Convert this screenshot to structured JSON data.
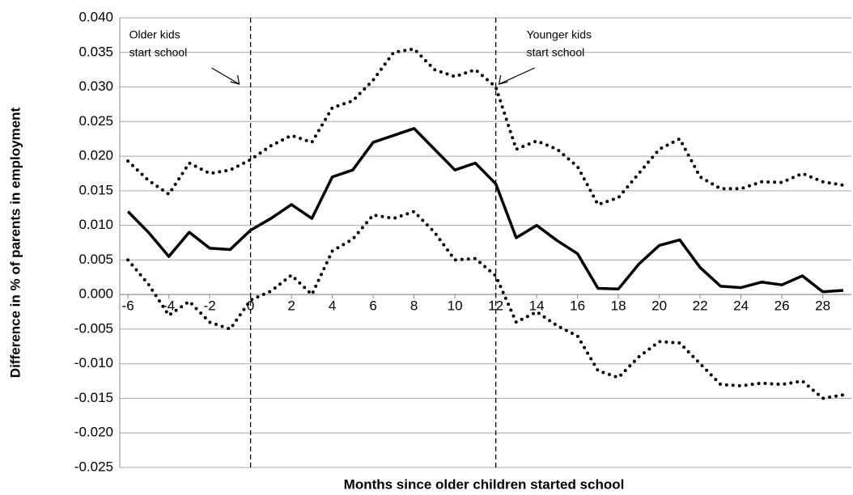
{
  "chart_data": {
    "type": "line",
    "xlabel": "Months since older children started school",
    "ylabel": "Difference in % of parents in employment",
    "x": [
      -6,
      -5,
      -4,
      -3,
      -2,
      -1,
      0,
      1,
      2,
      3,
      4,
      5,
      6,
      7,
      8,
      9,
      10,
      11,
      12,
      13,
      14,
      15,
      16,
      17,
      18,
      19,
      20,
      21,
      22,
      23,
      24,
      25,
      26,
      27,
      28,
      29
    ],
    "series": [
      {
        "color": "#000000",
        "style": "solid",
        "values": [
          0.012,
          0.009,
          0.0055,
          0.009,
          0.0067,
          0.0065,
          0.0093,
          0.011,
          0.013,
          0.011,
          0.017,
          0.018,
          0.022,
          0.023,
          0.024,
          0.021,
          0.018,
          0.019,
          0.016,
          0.0082,
          0.01,
          0.0078,
          0.0059,
          0.0009,
          0.0008,
          0.0044,
          0.0071,
          0.0079,
          0.0039,
          0.0012,
          0.001,
          0.0018,
          0.0014,
          0.0027,
          0.0004,
          0.0006
        ]
      },
      {
        "color": "#000000",
        "style": "dotted",
        "values": [
          0.0193,
          0.0165,
          0.0145,
          0.019,
          0.0175,
          0.018,
          0.0195,
          0.0215,
          0.023,
          0.022,
          0.027,
          0.028,
          0.031,
          0.035,
          0.0355,
          0.0325,
          0.0315,
          0.0325,
          0.03,
          0.021,
          0.0222,
          0.021,
          0.0185,
          0.013,
          0.014,
          0.0175,
          0.021,
          0.0225,
          0.017,
          0.0153,
          0.0153,
          0.0163,
          0.0162,
          0.0175,
          0.0163,
          0.0158
        ]
      },
      {
        "color": "#000000",
        "style": "dotted",
        "values": [
          0.005,
          0.0015,
          -0.003,
          -0.001,
          -0.004,
          -0.005,
          -0.0008,
          0.0005,
          0.0028,
          0.0,
          0.0063,
          0.008,
          0.0115,
          0.011,
          0.012,
          0.009,
          0.005,
          0.0052,
          0.0027,
          -0.004,
          -0.0025,
          -0.0045,
          -0.006,
          -0.011,
          -0.012,
          -0.009,
          -0.0068,
          -0.007,
          -0.01,
          -0.013,
          -0.0132,
          -0.0128,
          -0.013,
          -0.0125,
          -0.015,
          -0.0145
        ]
      }
    ],
    "xlim": [
      -6.4,
      29.4
    ],
    "xticks": [
      -6,
      -4,
      -2,
      0,
      2,
      4,
      6,
      8,
      10,
      12,
      14,
      16,
      18,
      20,
      22,
      24,
      26,
      28
    ],
    "ylim": [
      -0.025,
      0.04
    ],
    "yticks": [
      {
        "value": -0.025,
        "label": "-0.025"
      },
      {
        "value": -0.02,
        "label": "-0.020"
      },
      {
        "value": -0.015,
        "label": "-0.015"
      },
      {
        "value": -0.01,
        "label": "-0.010"
      },
      {
        "value": -0.005,
        "label": "-0.005"
      },
      {
        "value": 0,
        "label": "0.000"
      },
      {
        "value": 0.005,
        "label": "0.005"
      },
      {
        "value": 0.01,
        "label": "0.010"
      },
      {
        "value": 0.015,
        "label": "0.015"
      },
      {
        "value": 0.02,
        "label": "0.020"
      },
      {
        "value": 0.025,
        "label": "0.025"
      },
      {
        "value": 0.03,
        "label": "0.030"
      },
      {
        "value": 0.035,
        "label": "0.035"
      },
      {
        "value": 0.04,
        "label": "0.040"
      }
    ],
    "grid": true,
    "annotations": [
      {
        "lines": [
          "Older kids",
          "start school"
        ],
        "x": 0
      },
      {
        "lines": [
          "Younger kids",
          "start school"
        ],
        "x": 12
      }
    ]
  }
}
